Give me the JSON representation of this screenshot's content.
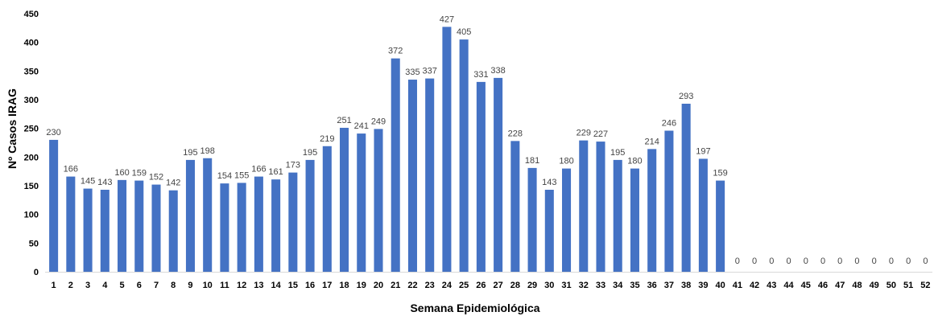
{
  "chart_data": {
    "type": "bar",
    "xlabel": "Semana Epidemiológica",
    "ylabel": "Nº Casos IRAG",
    "ylim": [
      0,
      450
    ],
    "yticks": [
      0,
      50,
      100,
      150,
      200,
      250,
      300,
      350,
      400,
      450
    ],
    "grid": false,
    "legend": "none",
    "bar_color": "#4472C4",
    "categories": [
      "1",
      "2",
      "3",
      "4",
      "5",
      "6",
      "7",
      "8",
      "9",
      "10",
      "11",
      "12",
      "13",
      "14",
      "15",
      "16",
      "17",
      "18",
      "19",
      "20",
      "21",
      "22",
      "23",
      "24",
      "25",
      "26",
      "27",
      "28",
      "29",
      "30",
      "31",
      "32",
      "33",
      "34",
      "35",
      "36",
      "37",
      "38",
      "39",
      "40",
      "41",
      "42",
      "43",
      "44",
      "45",
      "46",
      "47",
      "48",
      "49",
      "50",
      "51",
      "52"
    ],
    "values": [
      230,
      166,
      145,
      143,
      160,
      159,
      152,
      142,
      195,
      198,
      154,
      155,
      166,
      161,
      173,
      195,
      219,
      251,
      241,
      249,
      372,
      335,
      337,
      427,
      405,
      331,
      338,
      228,
      181,
      143,
      180,
      229,
      227,
      195,
      180,
      214,
      246,
      293,
      197,
      159,
      0,
      0,
      0,
      0,
      0,
      0,
      0,
      0,
      0,
      0,
      0,
      0
    ]
  }
}
